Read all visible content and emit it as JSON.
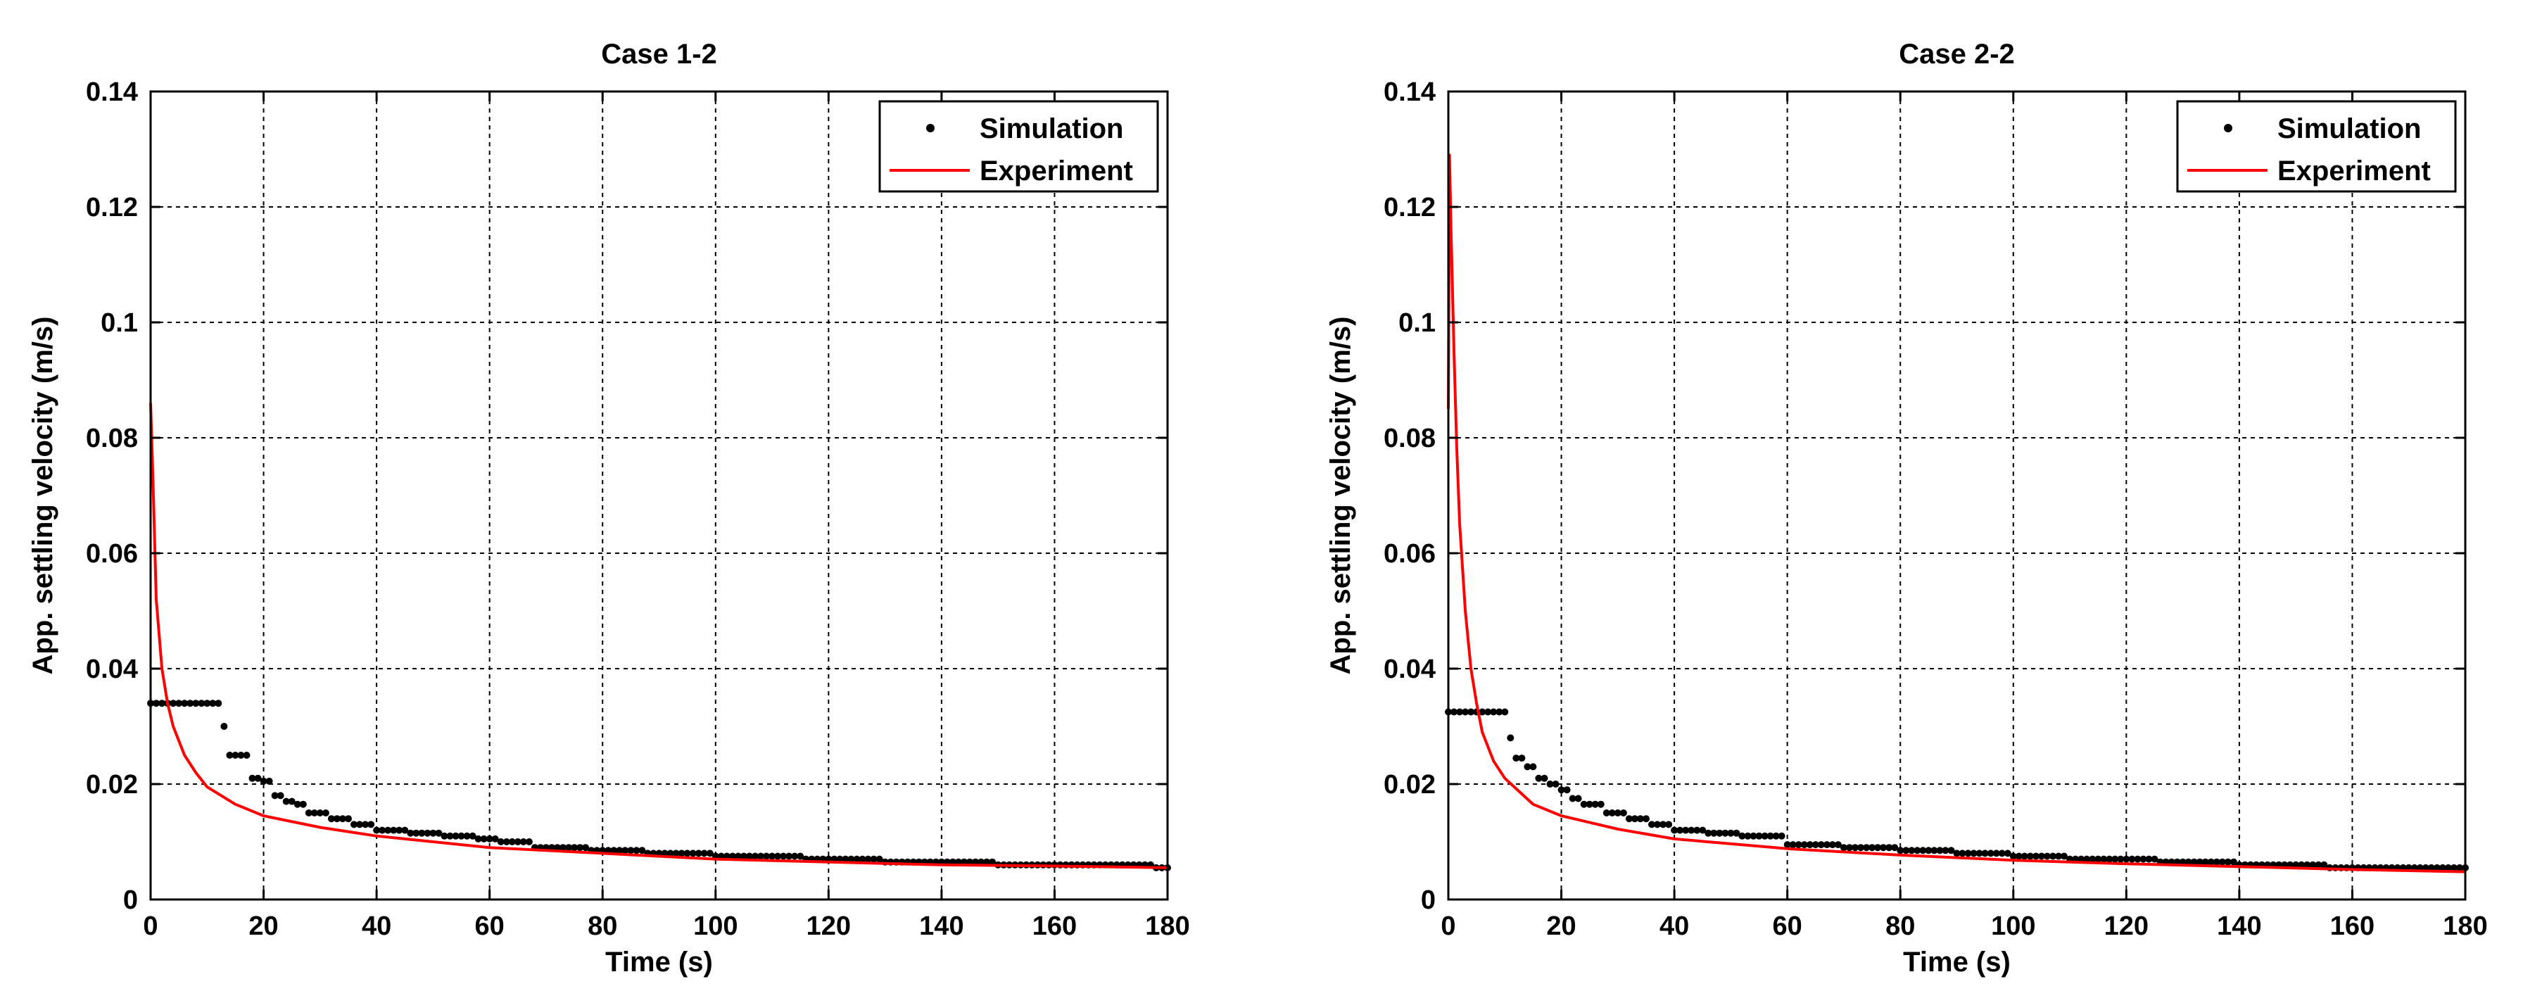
{
  "chart_data": [
    {
      "type": "line",
      "title": "Case 1-2",
      "xlabel": "Time (s)",
      "ylabel": "App. settling velocity (m/s)",
      "xlim": [
        0,
        180
      ],
      "ylim": [
        0,
        0.14
      ],
      "xticks": [
        0,
        20,
        40,
        60,
        80,
        100,
        120,
        140,
        160,
        180
      ],
      "yticks": [
        0,
        0.02,
        0.04,
        0.06,
        0.08,
        0.1,
        0.12,
        0.14
      ],
      "grid": true,
      "legend": {
        "position": "top-right",
        "entries": [
          "Simulation",
          "Experiment"
        ]
      },
      "series": [
        {
          "name": "Simulation",
          "style": "points",
          "color": "#000000",
          "x": [
            0,
            12,
            13,
            14,
            16,
            18,
            20,
            22,
            24,
            26,
            28,
            32,
            36,
            40,
            46,
            52,
            58,
            62,
            68,
            78,
            88,
            100,
            116,
            130,
            150,
            164,
            178,
            180
          ],
          "y": [
            0.034,
            0.034,
            0.03,
            0.025,
            0.025,
            0.021,
            0.0205,
            0.018,
            0.017,
            0.0165,
            0.015,
            0.014,
            0.013,
            0.012,
            0.0115,
            0.011,
            0.0105,
            0.01,
            0.009,
            0.0085,
            0.008,
            0.0075,
            0.007,
            0.0065,
            0.006,
            0.006,
            0.0055,
            0.0055
          ]
        },
        {
          "name": "Experiment",
          "style": "line",
          "color": "#ff0000",
          "x": [
            0,
            0.5,
            1,
            2,
            3,
            4,
            6,
            8,
            10,
            15,
            20,
            30,
            40,
            60,
            80,
            100,
            120,
            140,
            160,
            180
          ],
          "y": [
            0.086,
            0.07,
            0.052,
            0.04,
            0.034,
            0.03,
            0.025,
            0.022,
            0.0195,
            0.0165,
            0.0145,
            0.0125,
            0.011,
            0.009,
            0.008,
            0.007,
            0.0065,
            0.006,
            0.0058,
            0.0055
          ]
        }
      ]
    },
    {
      "type": "line",
      "title": "Case 2-2",
      "xlabel": "Time (s)",
      "ylabel": "App. settling velocity (m/s)",
      "xlim": [
        0,
        180
      ],
      "ylim": [
        0,
        0.14
      ],
      "xticks": [
        0,
        20,
        40,
        60,
        80,
        100,
        120,
        140,
        160,
        180
      ],
      "yticks": [
        0,
        0.02,
        0.04,
        0.06,
        0.08,
        0.1,
        0.12,
        0.14
      ],
      "grid": true,
      "legend": {
        "position": "top-right",
        "entries": [
          "Simulation",
          "Experiment"
        ]
      },
      "series": [
        {
          "name": "Simulation",
          "style": "points",
          "color": "#000000",
          "x": [
            0,
            10,
            11,
            12,
            14,
            16,
            18,
            20,
            22,
            24,
            28,
            32,
            36,
            40,
            46,
            52,
            60,
            70,
            80,
            90,
            100,
            110,
            126,
            140,
            156,
            170,
            180
          ],
          "y": [
            0.0325,
            0.0325,
            0.028,
            0.0245,
            0.023,
            0.021,
            0.02,
            0.019,
            0.0175,
            0.0165,
            0.015,
            0.014,
            0.013,
            0.012,
            0.0115,
            0.011,
            0.0095,
            0.009,
            0.0085,
            0.008,
            0.0075,
            0.007,
            0.0065,
            0.006,
            0.0055,
            0.0055,
            0.0055
          ]
        },
        {
          "name": "Experiment",
          "style": "line",
          "color": "#ff0000",
          "x": [
            0,
            0.2,
            0.5,
            1,
            1.5,
            2,
            3,
            4,
            5,
            6,
            8,
            10,
            15,
            20,
            30,
            40,
            60,
            80,
            100,
            120,
            140,
            160,
            180
          ],
          "y": [
            0.085,
            0.129,
            0.115,
            0.095,
            0.078,
            0.065,
            0.05,
            0.04,
            0.034,
            0.029,
            0.024,
            0.021,
            0.0165,
            0.0145,
            0.0122,
            0.0105,
            0.0088,
            0.0077,
            0.0068,
            0.0062,
            0.0057,
            0.0052,
            0.0048
          ]
        }
      ]
    }
  ]
}
